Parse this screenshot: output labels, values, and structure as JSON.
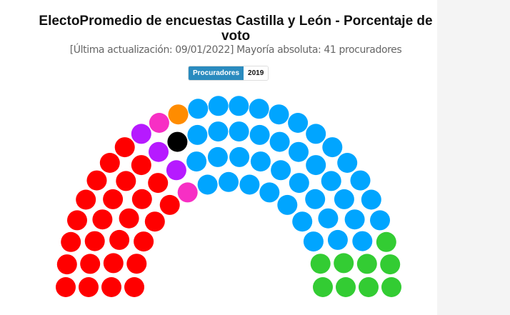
{
  "title": "ElectoPromedio de encuestas Castilla y León - Porcentaje de voto",
  "subtitle": "[Última actualización: 09/01/2022] Mayoría absoluta: 41 procuradores",
  "toggle": {
    "active": "Procuradores",
    "other": "2019"
  },
  "chart_data": {
    "type": "parliament",
    "total_seats": 81,
    "majority": 41,
    "rows": 4,
    "groups": [
      {
        "color": "#ff0000",
        "seats": 26
      },
      {
        "color": "#b61aff",
        "seats": 3
      },
      {
        "color": "#f72fc4",
        "seats": 2
      },
      {
        "color": "#000000",
        "seats": 1
      },
      {
        "color": "#ff8c00",
        "seats": 1
      },
      {
        "color": "#00a5ff",
        "seats": 39
      },
      {
        "color": "#33cc33",
        "seats": 9
      }
    ]
  }
}
